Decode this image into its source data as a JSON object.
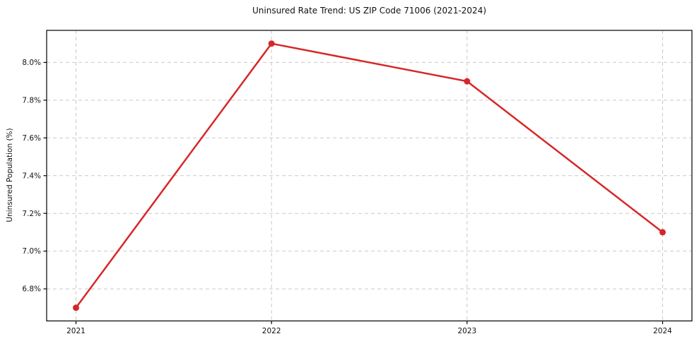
{
  "chart_data": {
    "type": "line",
    "title": "Uninsured Rate Trend: US ZIP Code 71006 (2021-2024)",
    "xlabel": "",
    "ylabel": "Uninsured Population (%)",
    "x": [
      2021,
      2022,
      2023,
      2024
    ],
    "values": [
      6.7,
      8.1,
      7.9,
      7.1
    ],
    "xticks": [
      2021,
      2022,
      2023,
      2024
    ],
    "xtick_labels": [
      "2021",
      "2022",
      "2023",
      "2024"
    ],
    "yticks": [
      6.8,
      7.0,
      7.2,
      7.4,
      7.6,
      7.8,
      8.0
    ],
    "ytick_labels": [
      "6.8%",
      "7.0%",
      "7.2%",
      "7.4%",
      "7.6%",
      "7.8%",
      "8.0%"
    ],
    "xlim": [
      2020.85,
      2024.15
    ],
    "ylim": [
      6.63,
      8.17
    ],
    "grid": true,
    "grid_style": "dashed",
    "legend": false,
    "line_color": "#d62728",
    "marker": "circle",
    "grid_color": "#c9c9c9",
    "spine_color": "#000000",
    "text_color": "#111111"
  }
}
